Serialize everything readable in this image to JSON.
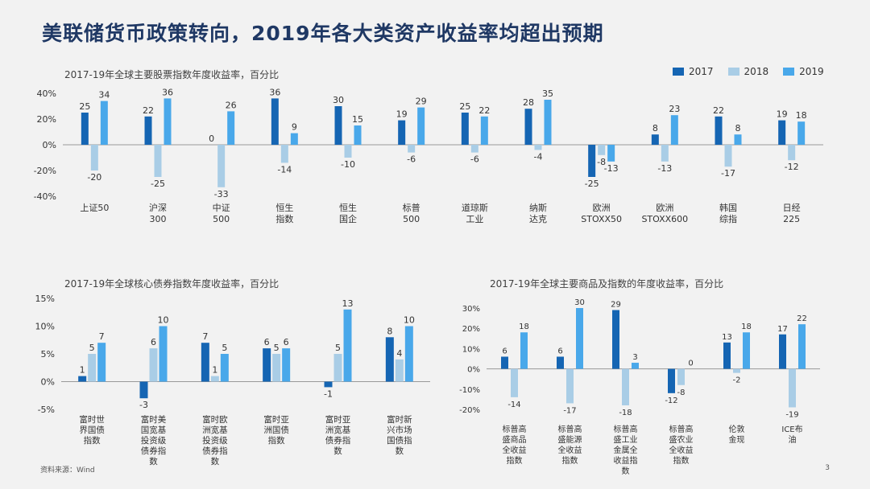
{
  "title": "美联储货币政策转向，2019年各大类资产收益率均超出预期",
  "colors": {
    "c2017": "#1565b3",
    "c2018": "#a9cde6",
    "c2019": "#49a8ea",
    "title": "#1f3864"
  },
  "legend": [
    {
      "label": "2017",
      "color": "#1565b3"
    },
    {
      "label": "2018",
      "color": "#a9cde6"
    },
    {
      "label": "2019",
      "color": "#49a8ea"
    }
  ],
  "source": "资料来源：Wind",
  "page_number": "3",
  "chart_data": [
    {
      "type": "bar",
      "title": "2017-19年全球主要股票指数年度收益率，百分比",
      "series_names": [
        "2017",
        "2018",
        "2019"
      ],
      "categories": [
        "上证50",
        "沪深\n300",
        "中证\n500",
        "恒生\n指数",
        "恒生\n国企",
        "标普\n500",
        "道琼斯\n工业",
        "纳斯\n达克",
        "欧洲\nSTOXX50",
        "欧洲\nSTOXX600",
        "韩国\n综指",
        "日经\n225"
      ],
      "series": [
        {
          "name": "2017",
          "values": [
            25,
            22,
            0,
            36,
            30,
            19,
            25,
            28,
            -25,
            8,
            22,
            19
          ]
        },
        {
          "name": "2018",
          "values": [
            -20,
            -25,
            -33,
            -14,
            -10,
            -6,
            -6,
            -4,
            -8,
            -13,
            -17,
            -12
          ]
        },
        {
          "name": "2019",
          "values": [
            34,
            36,
            26,
            9,
            15,
            29,
            22,
            35,
            -13,
            23,
            8,
            18
          ]
        }
      ],
      "ylim": [
        -40,
        40
      ],
      "yticks": [
        -40,
        -20,
        0,
        20,
        40
      ],
      "ytick_labels": [
        "-40%",
        "-20%",
        "0%",
        "20%",
        "40%"
      ]
    },
    {
      "type": "bar",
      "title": "2017-19年全球核心债券指数年度收益率，百分比",
      "series_names": [
        "2017",
        "2018",
        "2019"
      ],
      "categories": [
        "富时世\n界国债\n指数",
        "富时美\n国宽基\n投资级\n债券指\n数",
        "富时欧\n洲宽基\n投资级\n债券指\n数",
        "富时亚\n洲国债\n指数",
        "富时亚\n洲宽基\n债券指\n数",
        "富时新\n兴市场\n国债指\n数"
      ],
      "series": [
        {
          "name": "2017",
          "values": [
            1,
            -3,
            7,
            6,
            -1,
            8
          ]
        },
        {
          "name": "2018",
          "values": [
            5,
            6,
            1,
            5,
            5,
            4
          ]
        },
        {
          "name": "2019",
          "values": [
            7,
            10,
            5,
            6,
            13,
            10
          ]
        }
      ],
      "ylim": [
        -5,
        15
      ],
      "yticks": [
        -5,
        0,
        5,
        10,
        15
      ],
      "ytick_labels": [
        "-5%",
        "0%",
        "5%",
        "10%",
        "15%"
      ]
    },
    {
      "type": "bar",
      "title": "2017-19年全球主要商品及指数的年度收益率，百分比",
      "series_names": [
        "2017",
        "2018",
        "2019"
      ],
      "categories": [
        "标普高\n盛商品\n全收益\n指数",
        "标普高\n盛能源\n全收益\n指数",
        "标普高\n盛工业\n金属全\n收益指\n数",
        "标普高\n盛农业\n全收益\n指数",
        "伦敦\n金现",
        "ICE布\n油"
      ],
      "series": [
        {
          "name": "2017",
          "values": [
            6,
            6,
            29,
            -12,
            13,
            17
          ]
        },
        {
          "name": "2018",
          "values": [
            -14,
            -17,
            -18,
            -8,
            -2,
            -19
          ]
        },
        {
          "name": "2019",
          "values": [
            18,
            30,
            3,
            0,
            18,
            22
          ]
        }
      ],
      "ylim": [
        -20,
        30
      ],
      "yticks": [
        -20,
        -10,
        0,
        10,
        20,
        30
      ],
      "ytick_labels": [
        "-20%",
        "-10%",
        "0%",
        "10%",
        "20%",
        "30%"
      ]
    }
  ]
}
